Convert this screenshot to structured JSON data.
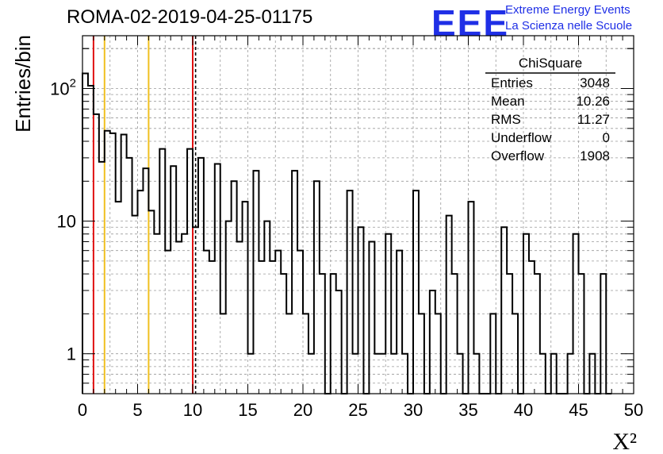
{
  "header": {
    "run_title": "ROMA-02-2019-04-25-01175",
    "logo_text": "EEE",
    "logo_line1": "Extreme Energy Events",
    "logo_line2": "La Scienza nelle Scuole"
  },
  "stats_box": {
    "title": "ChiSquare",
    "rows": [
      {
        "label": "Entries",
        "value": "3048"
      },
      {
        "label": "Mean",
        "value": "10.26"
      },
      {
        "label": "RMS",
        "value": "11.27"
      },
      {
        "label": "Underflow",
        "value": "0"
      },
      {
        "label": "Overflow",
        "value": "1908"
      }
    ]
  },
  "colors": {
    "histogram": "#000000",
    "grid": "#9a9a9a",
    "red_line": "#e01010",
    "yellow_line": "#f0c020",
    "logo": "#1f2fe6"
  },
  "chart_data": {
    "type": "bar",
    "style": "step-histogram",
    "title": "ROMA-02-2019-04-25-01175",
    "xlabel": "X²",
    "ylabel": "Entries/bin",
    "xlim": [
      0,
      50
    ],
    "ylim": [
      0.5,
      250
    ],
    "y_scale": "log",
    "grid": true,
    "x_ticks": [
      0,
      5,
      10,
      15,
      20,
      25,
      30,
      35,
      40,
      45,
      50
    ],
    "y_ticks": [
      {
        "value": 1,
        "label": "1"
      },
      {
        "value": 10,
        "label": "10"
      },
      {
        "value": 100,
        "label": "10²"
      }
    ],
    "bin_width": 0.5,
    "bins": [
      {
        "x": 0,
        "y": 130
      },
      {
        "x": 0.5,
        "y": 105
      },
      {
        "x": 1,
        "y": 64
      },
      {
        "x": 1.5,
        "y": 28
      },
      {
        "x": 2,
        "y": 48
      },
      {
        "x": 2.5,
        "y": 46
      },
      {
        "x": 3,
        "y": 14
      },
      {
        "x": 3.5,
        "y": 45
      },
      {
        "x": 4,
        "y": 30
      },
      {
        "x": 4.5,
        "y": 11
      },
      {
        "x": 5,
        "y": 17
      },
      {
        "x": 5.5,
        "y": 25
      },
      {
        "x": 6,
        "y": 12
      },
      {
        "x": 6.5,
        "y": 8
      },
      {
        "x": 7,
        "y": 35
      },
      {
        "x": 7.5,
        "y": 6
      },
      {
        "x": 8,
        "y": 26
      },
      {
        "x": 8.5,
        "y": 7
      },
      {
        "x": 9,
        "y": 8
      },
      {
        "x": 9.5,
        "y": 35
      },
      {
        "x": 10,
        "y": 9
      },
      {
        "x": 10.5,
        "y": 30
      },
      {
        "x": 11,
        "y": 6
      },
      {
        "x": 11.5,
        "y": 5
      },
      {
        "x": 12,
        "y": 27
      },
      {
        "x": 12.5,
        "y": 2
      },
      {
        "x": 13,
        "y": 10
      },
      {
        "x": 13.5,
        "y": 20
      },
      {
        "x": 14,
        "y": 7
      },
      {
        "x": 14.5,
        "y": 14
      },
      {
        "x": 15,
        "y": 1
      },
      {
        "x": 15.5,
        "y": 24
      },
      {
        "x": 16,
        "y": 5
      },
      {
        "x": 16.5,
        "y": 10
      },
      {
        "x": 17,
        "y": 5
      },
      {
        "x": 17.5,
        "y": 6
      },
      {
        "x": 18,
        "y": 4
      },
      {
        "x": 18.5,
        "y": 2
      },
      {
        "x": 19,
        "y": 24
      },
      {
        "x": 19.5,
        "y": 6
      },
      {
        "x": 20,
        "y": 2
      },
      {
        "x": 20.5,
        "y": 1
      },
      {
        "x": 21,
        "y": 20
      },
      {
        "x": 21.5,
        "y": 4
      },
      {
        "x": 22,
        "y": 0
      },
      {
        "x": 22.5,
        "y": 4
      },
      {
        "x": 23,
        "y": 3
      },
      {
        "x": 23.5,
        "y": 0
      },
      {
        "x": 24,
        "y": 17
      },
      {
        "x": 24.5,
        "y": 1
      },
      {
        "x": 25,
        "y": 9
      },
      {
        "x": 25.5,
        "y": 0
      },
      {
        "x": 26,
        "y": 7
      },
      {
        "x": 26.5,
        "y": 1
      },
      {
        "x": 27,
        "y": 1
      },
      {
        "x": 27.5,
        "y": 8
      },
      {
        "x": 28,
        "y": 1
      },
      {
        "x": 28.5,
        "y": 6
      },
      {
        "x": 29,
        "y": 1
      },
      {
        "x": 29.5,
        "y": 0
      },
      {
        "x": 30,
        "y": 17
      },
      {
        "x": 30.5,
        "y": 2
      },
      {
        "x": 31,
        "y": 0
      },
      {
        "x": 31.5,
        "y": 3
      },
      {
        "x": 32,
        "y": 2
      },
      {
        "x": 32.5,
        "y": 0
      },
      {
        "x": 33,
        "y": 11
      },
      {
        "x": 33.5,
        "y": 4
      },
      {
        "x": 34,
        "y": 1
      },
      {
        "x": 34.5,
        "y": 0
      },
      {
        "x": 35,
        "y": 14
      },
      {
        "x": 35.5,
        "y": 1
      },
      {
        "x": 36,
        "y": 0
      },
      {
        "x": 36.5,
        "y": 0
      },
      {
        "x": 37,
        "y": 2
      },
      {
        "x": 37.5,
        "y": 0
      },
      {
        "x": 38,
        "y": 9
      },
      {
        "x": 38.5,
        "y": 4
      },
      {
        "x": 39,
        "y": 2
      },
      {
        "x": 39.5,
        "y": 0
      },
      {
        "x": 40,
        "y": 8
      },
      {
        "x": 40.5,
        "y": 5
      },
      {
        "x": 41,
        "y": 4
      },
      {
        "x": 41.5,
        "y": 1
      },
      {
        "x": 42,
        "y": 0
      },
      {
        "x": 42.5,
        "y": 1
      },
      {
        "x": 43,
        "y": 0
      },
      {
        "x": 43.5,
        "y": 0
      },
      {
        "x": 44,
        "y": 1
      },
      {
        "x": 44.5,
        "y": 8
      },
      {
        "x": 45,
        "y": 4
      },
      {
        "x": 45.5,
        "y": 0
      },
      {
        "x": 46,
        "y": 1
      },
      {
        "x": 46.5,
        "y": 0
      },
      {
        "x": 47,
        "y": 4
      },
      {
        "x": 47.5,
        "y": 0
      }
    ],
    "reference_lines": [
      {
        "x": 1,
        "color": "#e01010",
        "style": "solid"
      },
      {
        "x": 2,
        "color": "#f0c020",
        "style": "solid"
      },
      {
        "x": 6,
        "color": "#f0c020",
        "style": "solid"
      },
      {
        "x": 10,
        "color": "#e01010",
        "style": "solid"
      },
      {
        "x": 10.26,
        "color": "#000000",
        "style": "dashed"
      }
    ]
  }
}
